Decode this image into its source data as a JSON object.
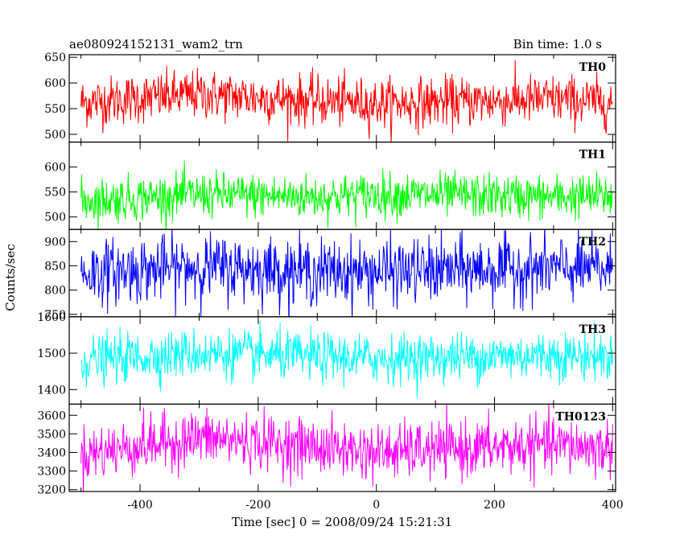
{
  "chart_data": {
    "type": "line",
    "title": "ae080924152131_wam2_trn",
    "bin_time_label": "Bin time: 1.0 s",
    "xlabel": "Time [sec] 0 = 2008/09/24 15:21:31",
    "ylabel": "Counts/sec",
    "xlim": [
      -520,
      405
    ],
    "x_range": [
      -500,
      400
    ],
    "x_ticks": [
      "-400",
      "-200",
      "0",
      "200",
      "400"
    ],
    "x_tick_values": [
      -400,
      -200,
      0,
      200,
      400
    ],
    "grid": false,
    "panels": [
      {
        "name": "TH0",
        "color": "#ff0000",
        "ylim": [
          485,
          655
        ],
        "y_ticks": [
          "500",
          "550",
          "600",
          "650"
        ],
        "y_tick_values": [
          500,
          550,
          600,
          650
        ],
        "mean": 565,
        "noise_sd": 24,
        "trend": [
          [
            -500,
            562
          ],
          [
            -300,
            578
          ],
          [
            -100,
            565
          ],
          [
            0,
            560
          ],
          [
            300,
            568
          ],
          [
            400,
            562
          ]
        ]
      },
      {
        "name": "TH1",
        "color": "#00ff00",
        "ylim": [
          475,
          650
        ],
        "y_ticks": [
          "500",
          "550",
          "600"
        ],
        "y_tick_values": [
          500,
          550,
          600
        ],
        "mean": 540,
        "noise_sd": 22,
        "trend": [
          [
            -500,
            532
          ],
          [
            -300,
            545
          ],
          [
            -100,
            540
          ],
          [
            0,
            545
          ],
          [
            300,
            540
          ],
          [
            400,
            542
          ]
        ]
      },
      {
        "name": "TH2",
        "color": "#0000ff",
        "ylim": [
          745,
          925
        ],
        "y_ticks": [
          "750",
          "800",
          "850",
          "900"
        ],
        "y_tick_values": [
          750,
          800,
          850,
          900
        ],
        "mean": 840,
        "noise_sd": 33,
        "trend": [
          [
            -500,
            835
          ],
          [
            -300,
            848
          ],
          [
            -100,
            838
          ],
          [
            0,
            838
          ],
          [
            300,
            845
          ],
          [
            400,
            842
          ]
        ]
      },
      {
        "name": "TH3",
        "color": "#00ffff",
        "ylim": [
          1360,
          1600
        ],
        "y_ticks": [
          "1400",
          "1500",
          "1600"
        ],
        "y_tick_values": [
          1400,
          1500,
          1600
        ],
        "mean": 1490,
        "noise_sd": 33,
        "trend": [
          [
            -500,
            1480
          ],
          [
            -300,
            1500
          ],
          [
            -100,
            1490
          ],
          [
            0,
            1485
          ],
          [
            300,
            1495
          ],
          [
            400,
            1490
          ]
        ]
      },
      {
        "name": "TH0123",
        "color": "#ff00ff",
        "ylim": [
          3190,
          3660
        ],
        "y_ticks": [
          "3200",
          "3300",
          "3400",
          "3500",
          "3600"
        ],
        "y_tick_values": [
          3200,
          3300,
          3400,
          3500,
          3600
        ],
        "mean": 3430,
        "noise_sd": 75,
        "trend": [
          [
            -500,
            3390
          ],
          [
            -300,
            3480
          ],
          [
            -100,
            3430
          ],
          [
            0,
            3400
          ],
          [
            300,
            3440
          ],
          [
            400,
            3420
          ]
        ]
      }
    ]
  }
}
